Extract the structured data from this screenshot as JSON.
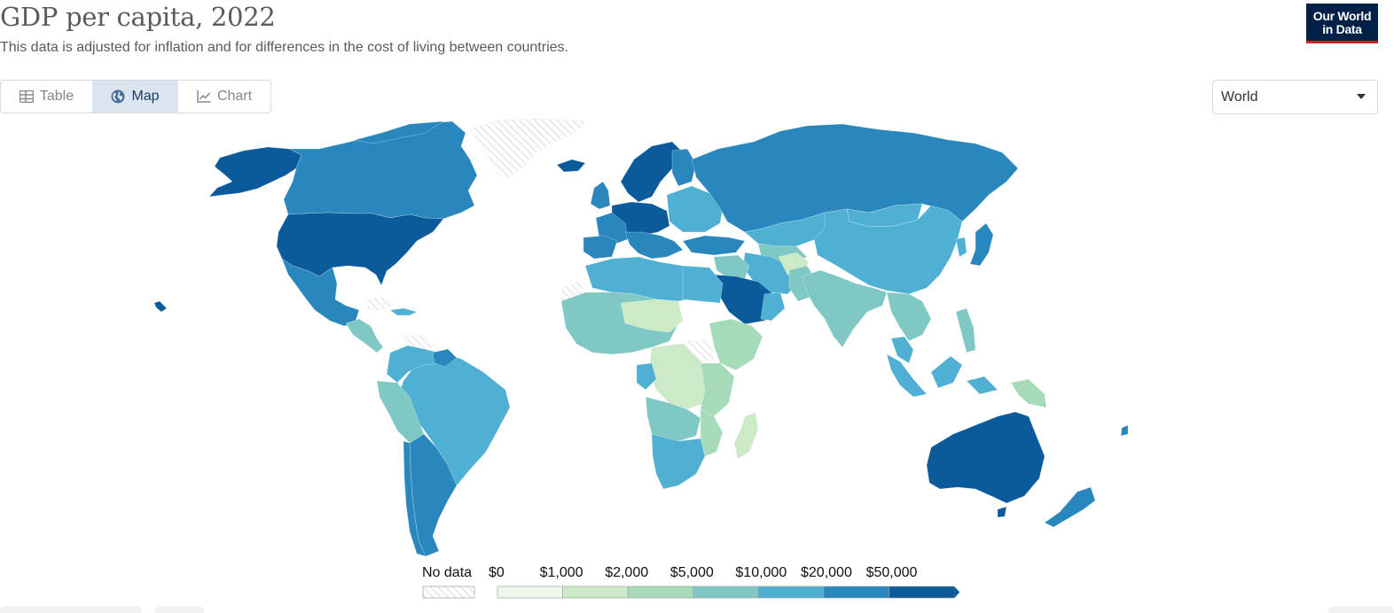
{
  "header": {
    "title": "GDP per capita, 2022",
    "subtitle": "This data is adjusted for inflation and for differences in the cost of living between countries.",
    "logo_line1": "Our World",
    "logo_line2": "in Data"
  },
  "tabs": [
    {
      "label": "Table",
      "icon": "table-icon",
      "active": false
    },
    {
      "label": "Map",
      "icon": "globe-icon",
      "active": true
    },
    {
      "label": "Chart",
      "icon": "line-chart-icon",
      "active": false
    }
  ],
  "region_select": {
    "value": "World"
  },
  "legend": {
    "no_data_label": "No data",
    "bins": [
      "$0",
      "$1,000",
      "$2,000",
      "$5,000",
      "$10,000",
      "$20,000",
      "$50,000"
    ],
    "colors": [
      "#eef8ea",
      "#cdeac7",
      "#a5dbb8",
      "#7fc8c4",
      "#4fb0d3",
      "#2a87be",
      "#0b5a9c"
    ]
  },
  "colors": {
    "brand_navy": "#002147",
    "brand_red": "#ce261e",
    "tab_active_bg": "#dbe5f0",
    "no_data_hatch": "#d0d0d0"
  }
}
